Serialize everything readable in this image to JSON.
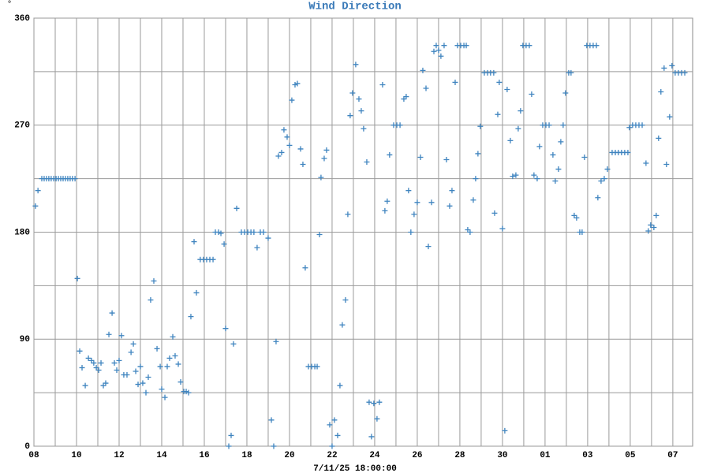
{
  "chart_data": {
    "type": "scatter",
    "title": "Wind Direction",
    "ylabel": "°",
    "xlabel": "7/11/25 18:00:00",
    "color": "#3f84bf",
    "marker": "+",
    "grid": true,
    "xlim": [
      0,
      30.93
    ],
    "ylim": [
      0,
      360
    ],
    "xticks": [
      {
        "value": 0,
        "label": "08"
      },
      {
        "value": 2,
        "label": "10"
      },
      {
        "value": 4,
        "label": "12"
      },
      {
        "value": 6,
        "label": "14"
      },
      {
        "value": 8,
        "label": "16"
      },
      {
        "value": 10,
        "label": "18"
      },
      {
        "value": 12,
        "label": "20"
      },
      {
        "value": 14,
        "label": "22"
      },
      {
        "value": 16,
        "label": "24"
      },
      {
        "value": 18,
        "label": "26"
      },
      {
        "value": 20,
        "label": "28"
      },
      {
        "value": 22,
        "label": "30"
      },
      {
        "value": 24,
        "label": "01"
      },
      {
        "value": 26,
        "label": "03"
      },
      {
        "value": 28,
        "label": "05"
      },
      {
        "value": 30,
        "label": "07"
      }
    ],
    "xminor": [
      1,
      3,
      5,
      7,
      9,
      11,
      13,
      15,
      17,
      19,
      21,
      23,
      25,
      27,
      29
    ],
    "yticks": [
      0,
      90,
      180,
      270,
      360
    ],
    "yminor": [
      45,
      135,
      225,
      315
    ],
    "x": [
      0.07,
      0.19,
      0.37,
      0.48,
      0.59,
      0.7,
      0.81,
      0.93,
      1.04,
      1.15,
      1.26,
      1.37,
      1.48,
      1.59,
      1.7,
      1.81,
      1.93,
      2.04,
      2.15,
      2.26,
      2.41,
      2.56,
      2.7,
      2.81,
      2.93,
      3.04,
      3.15,
      3.26,
      3.37,
      3.52,
      3.67,
      3.78,
      3.89,
      4.0,
      4.11,
      4.22,
      4.37,
      4.56,
      4.67,
      4.78,
      4.89,
      5.0,
      5.11,
      5.26,
      5.37,
      5.48,
      5.63,
      5.78,
      5.93,
      6.0,
      6.15,
      6.26,
      6.37,
      6.52,
      6.63,
      6.78,
      6.89,
      7.04,
      7.15,
      7.26,
      7.37,
      7.52,
      7.63,
      7.81,
      7.96,
      8.11,
      8.26,
      8.41,
      8.52,
      8.67,
      8.78,
      8.93,
      9.0,
      9.15,
      9.26,
      9.37,
      9.52,
      9.74,
      9.89,
      10.04,
      10.19,
      10.33,
      10.48,
      10.63,
      10.78,
      11.0,
      11.15,
      11.26,
      11.37,
      11.48,
      11.63,
      11.74,
      11.89,
      12.0,
      12.11,
      12.26,
      12.37,
      12.52,
      12.63,
      12.74,
      12.89,
      13.04,
      13.19,
      13.3,
      13.41,
      13.48,
      13.63,
      13.74,
      13.89,
      14.0,
      14.11,
      14.26,
      14.37,
      14.48,
      14.63,
      14.74,
      14.85,
      14.96,
      15.11,
      15.26,
      15.37,
      15.48,
      15.63,
      15.74,
      15.85,
      15.96,
      16.11,
      16.22,
      16.37,
      16.48,
      16.59,
      16.7,
      16.89,
      17.04,
      17.19,
      17.37,
      17.48,
      17.59,
      17.7,
      17.85,
      18.0,
      18.15,
      18.26,
      18.41,
      18.52,
      18.67,
      18.78,
      18.89,
      19.0,
      19.11,
      19.26,
      19.37,
      19.52,
      19.63,
      19.78,
      19.89,
      20.04,
      20.19,
      20.3,
      20.37,
      20.48,
      20.63,
      20.74,
      20.85,
      20.96,
      21.15,
      21.3,
      21.44,
      21.59,
      21.63,
      21.78,
      21.85,
      22.0,
      22.11,
      22.22,
      22.37,
      22.48,
      22.63,
      22.74,
      22.85,
      22.96,
      23.11,
      23.26,
      23.37,
      23.48,
      23.63,
      23.74,
      23.89,
      24.04,
      24.19,
      24.37,
      24.48,
      24.63,
      24.74,
      24.85,
      24.96,
      25.11,
      25.22,
      25.37,
      25.48,
      25.63,
      25.74,
      25.85,
      25.96,
      26.11,
      26.26,
      26.41,
      26.48,
      26.63,
      26.78,
      26.93,
      27.15,
      27.3,
      27.44,
      27.59,
      27.74,
      27.89,
      27.96,
      28.11,
      28.26,
      28.41,
      28.56,
      28.74,
      28.85,
      28.96,
      29.11,
      29.22,
      29.33,
      29.44,
      29.59,
      29.7,
      29.85,
      29.96,
      30.11,
      30.26,
      30.41,
      30.56
    ],
    "values": [
      202,
      215,
      225,
      225,
      225,
      225,
      225,
      225,
      225,
      225,
      225,
      225,
      225,
      225,
      225,
      225,
      225,
      141,
      80,
      66,
      51,
      74,
      72,
      70,
      66,
      64,
      70,
      51,
      53,
      94,
      112,
      70,
      64,
      72,
      93,
      60,
      60,
      79,
      86,
      63,
      52,
      67,
      53,
      45,
      58,
      123,
      139,
      82,
      67,
      48,
      41,
      67,
      74,
      92,
      76,
      69,
      54,
      46,
      46,
      45,
      109,
      172,
      129,
      157,
      157,
      157,
      157,
      157,
      180,
      180,
      179,
      170,
      99,
      0,
      9,
      86,
      200,
      180,
      180,
      180,
      180,
      180,
      167,
      180,
      180,
      175,
      22,
      0,
      88,
      244,
      247,
      266,
      260,
      253,
      291,
      304,
      305,
      250,
      237,
      150,
      67,
      67,
      67,
      67,
      178,
      226,
      242,
      249,
      18,
      0,
      22,
      9,
      51,
      102,
      123,
      195,
      278,
      297,
      321,
      292,
      282,
      267,
      239,
      37,
      8,
      36,
      23,
      37,
      304,
      198,
      206,
      245,
      270,
      270,
      270,
      292,
      294,
      215,
      180,
      195,
      205,
      243,
      316,
      301,
      168,
      205,
      332,
      337,
      333,
      328,
      337,
      241,
      202,
      215,
      306,
      337,
      337,
      337,
      337,
      182,
      180,
      207,
      225,
      246,
      269,
      314,
      314,
      314,
      314,
      196,
      279,
      306,
      183,
      13,
      300,
      257,
      227,
      228,
      267,
      282,
      337,
      337,
      337,
      296,
      228,
      225,
      252,
      270,
      270,
      270,
      245,
      223,
      233,
      256,
      270,
      297,
      314,
      314,
      194,
      192,
      180,
      180,
      243,
      337,
      337,
      337,
      337,
      209,
      223,
      225,
      233,
      247,
      247,
      247,
      247,
      247,
      247,
      268,
      270,
      270,
      270,
      270,
      238,
      181,
      186,
      184,
      194,
      259,
      298,
      318,
      237,
      277,
      320,
      314,
      314,
      314,
      314
    ]
  }
}
